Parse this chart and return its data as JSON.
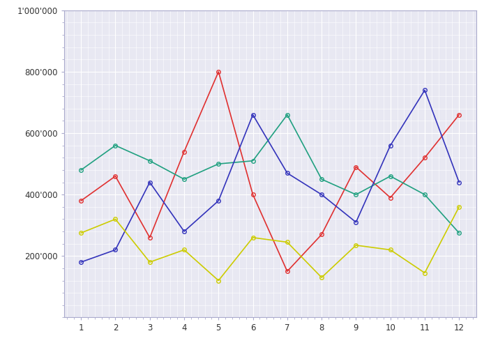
{
  "x": [
    1,
    2,
    3,
    4,
    5,
    6,
    7,
    8,
    9,
    10,
    11,
    12
  ],
  "series": [
    {
      "color": "#e03030",
      "values": [
        380000,
        460000,
        260000,
        540000,
        800000,
        400000,
        150000,
        270000,
        490000,
        390000,
        520000,
        660000
      ]
    },
    {
      "color": "#20a080",
      "values": [
        480000,
        560000,
        510000,
        450000,
        500000,
        510000,
        660000,
        450000,
        400000,
        460000,
        400000,
        275000
      ]
    },
    {
      "color": "#3333bb",
      "values": [
        180000,
        220000,
        440000,
        280000,
        380000,
        660000,
        470000,
        400000,
        310000,
        560000,
        740000,
        440000
      ]
    },
    {
      "color": "#cccc00",
      "values": [
        275000,
        320000,
        180000,
        220000,
        120000,
        260000,
        245000,
        130000,
        235000,
        220000,
        145000,
        360000
      ]
    }
  ],
  "ylim": [
    0,
    1000000
  ],
  "xlim": [
    0.5,
    12.5
  ],
  "yticks": [
    200000,
    400000,
    600000,
    800000,
    1000000
  ],
  "ytick_labels": [
    "200'000",
    "400'000",
    "600'000",
    "800'000",
    "1'000'000"
  ],
  "xticks": [
    1,
    2,
    3,
    4,
    5,
    6,
    7,
    8,
    9,
    10,
    11,
    12
  ],
  "fig_bg": "#ffffff",
  "plot_bg": "#e8e8f2",
  "grid_major_color": "#ffffff",
  "grid_minor_color": "#ffffff",
  "spine_color": "#aaaacc",
  "marker": "o",
  "marker_size": 4,
  "linewidth": 1.2,
  "figsize": [
    7.04,
    4.95
  ],
  "dpi": 100
}
